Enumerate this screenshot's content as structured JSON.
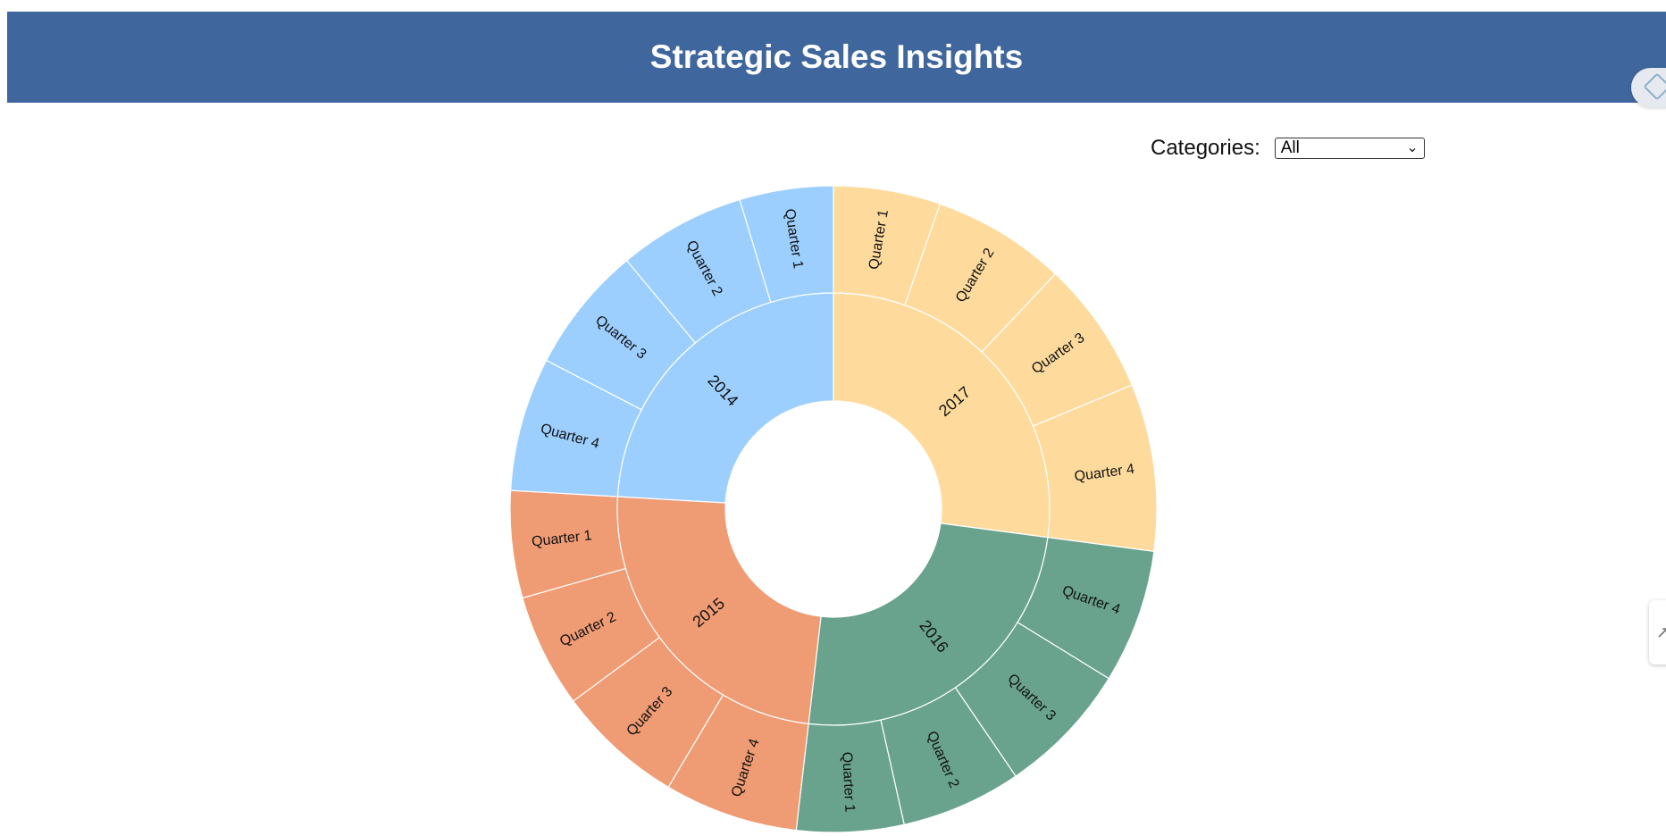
{
  "header": {
    "title": "Strategic Sales Insights"
  },
  "controls": {
    "label": "Categories:",
    "selected": "All",
    "options": [
      "All"
    ]
  },
  "colors": {
    "header_bg": "#40679d",
    "2014": "#9dcffe",
    "2015": "#ef9b74",
    "2016": "#69a38e",
    "2017": "#fedb9d"
  },
  "icons": {
    "top_right": "layers-icon",
    "bottom_right": "chart-icon"
  },
  "chart_data": {
    "type": "sunburst",
    "title": "",
    "rings": [
      "year",
      "quarter"
    ],
    "start_angle_deg": 0,
    "direction": "clockwise",
    "years": [
      {
        "name": "2017",
        "color": "#fedb9d",
        "quarters": [
          {
            "name": "Quarter 1",
            "value": 16
          },
          {
            "name": "Quarter 2",
            "value": 20
          },
          {
            "name": "Quarter 3",
            "value": 20
          },
          {
            "name": "Quarter 4",
            "value": 25
          }
        ]
      },
      {
        "name": "2016",
        "color": "#69a38e",
        "quarters": [
          {
            "name": "Quarter 4",
            "value": 20
          },
          {
            "name": "Quarter 3",
            "value": 20
          },
          {
            "name": "Quarter 2",
            "value": 18
          },
          {
            "name": "Quarter 1",
            "value": 16
          }
        ]
      },
      {
        "name": "2015",
        "color": "#ef9b74",
        "quarters": [
          {
            "name": "Quarter 4",
            "value": 20
          },
          {
            "name": "Quarter 3",
            "value": 19
          },
          {
            "name": "Quarter 2",
            "value": 17
          },
          {
            "name": "Quarter 1",
            "value": 16
          }
        ]
      },
      {
        "name": "2014",
        "color": "#9dcffe",
        "quarters": [
          {
            "name": "Quarter 4",
            "value": 20
          },
          {
            "name": "Quarter 3",
            "value": 19
          },
          {
            "name": "Quarter 2",
            "value": 19
          },
          {
            "name": "Quarter 1",
            "value": 14
          }
        ]
      }
    ]
  }
}
